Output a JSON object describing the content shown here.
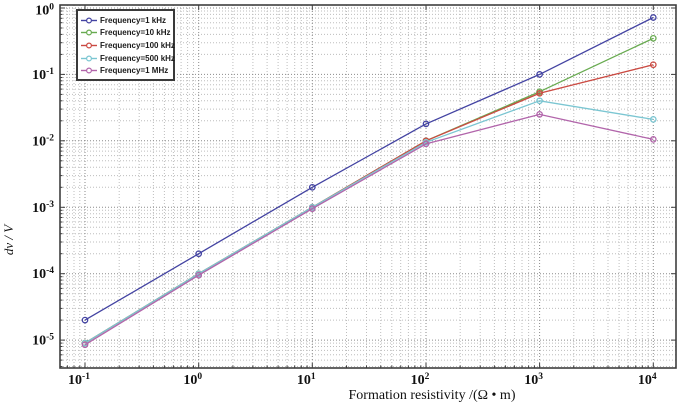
{
  "figure": {
    "type": "log-log line plot",
    "background": "#ffffff",
    "grid_color_major": "#8a8a8a",
    "grid_color_minor": "#bdbdbd",
    "border_color": "#3f3f3f"
  },
  "chart_data": {
    "type": "line",
    "title": "",
    "xlabel": "Formation resistivity /(Ω • m)",
    "ylabel": "dv / V",
    "x_scale": "log",
    "y_scale": "log",
    "xlim_log10": [
      -1.22,
      4.2
    ],
    "ylim_log10": [
      -5.42,
      0.045
    ],
    "x": [
      0.1,
      1,
      10,
      100,
      1000,
      10000
    ],
    "x_tick_exponents": [
      -1,
      0,
      1,
      2,
      3,
      4
    ],
    "y_tick_exponents": [
      0,
      -1,
      -2,
      -3,
      -4,
      -5
    ],
    "x_tick_labels": [
      "10⁻¹",
      "10⁰",
      "10¹",
      "10²",
      "10³",
      "10⁴"
    ],
    "y_tick_labels": [
      "10⁰",
      "10⁻¹",
      "10⁻²",
      "10⁻³",
      "10⁻⁴",
      "10⁻⁵"
    ],
    "grid": "major and minor dotted, both axes",
    "legend_position": "top-left",
    "marker": "circle",
    "series": [
      {
        "name": "Frequency=1 kHz",
        "color": "#4343a2",
        "values": [
          2e-05,
          0.0002,
          0.002,
          0.018,
          0.1,
          0.72
        ]
      },
      {
        "name": "Frequency=10 kHz",
        "color": "#68ab50",
        "values": [
          9e-06,
          0.0001,
          0.001,
          0.01,
          0.055,
          0.35
        ]
      },
      {
        "name": "Frequency=100 kHz",
        "color": "#cb4a42",
        "values": [
          9e-06,
          0.0001,
          0.001,
          0.01,
          0.052,
          0.14
        ]
      },
      {
        "name": "Frequency=500 kHz",
        "color": "#7bc6d2",
        "values": [
          9e-06,
          0.0001,
          0.001,
          0.0095,
          0.04,
          0.021
        ]
      },
      {
        "name": "Frequency=1 MHz",
        "color": "#b265ab",
        "values": [
          8.5e-06,
          9.5e-05,
          0.00095,
          0.009,
          0.025,
          0.0105
        ]
      }
    ]
  }
}
